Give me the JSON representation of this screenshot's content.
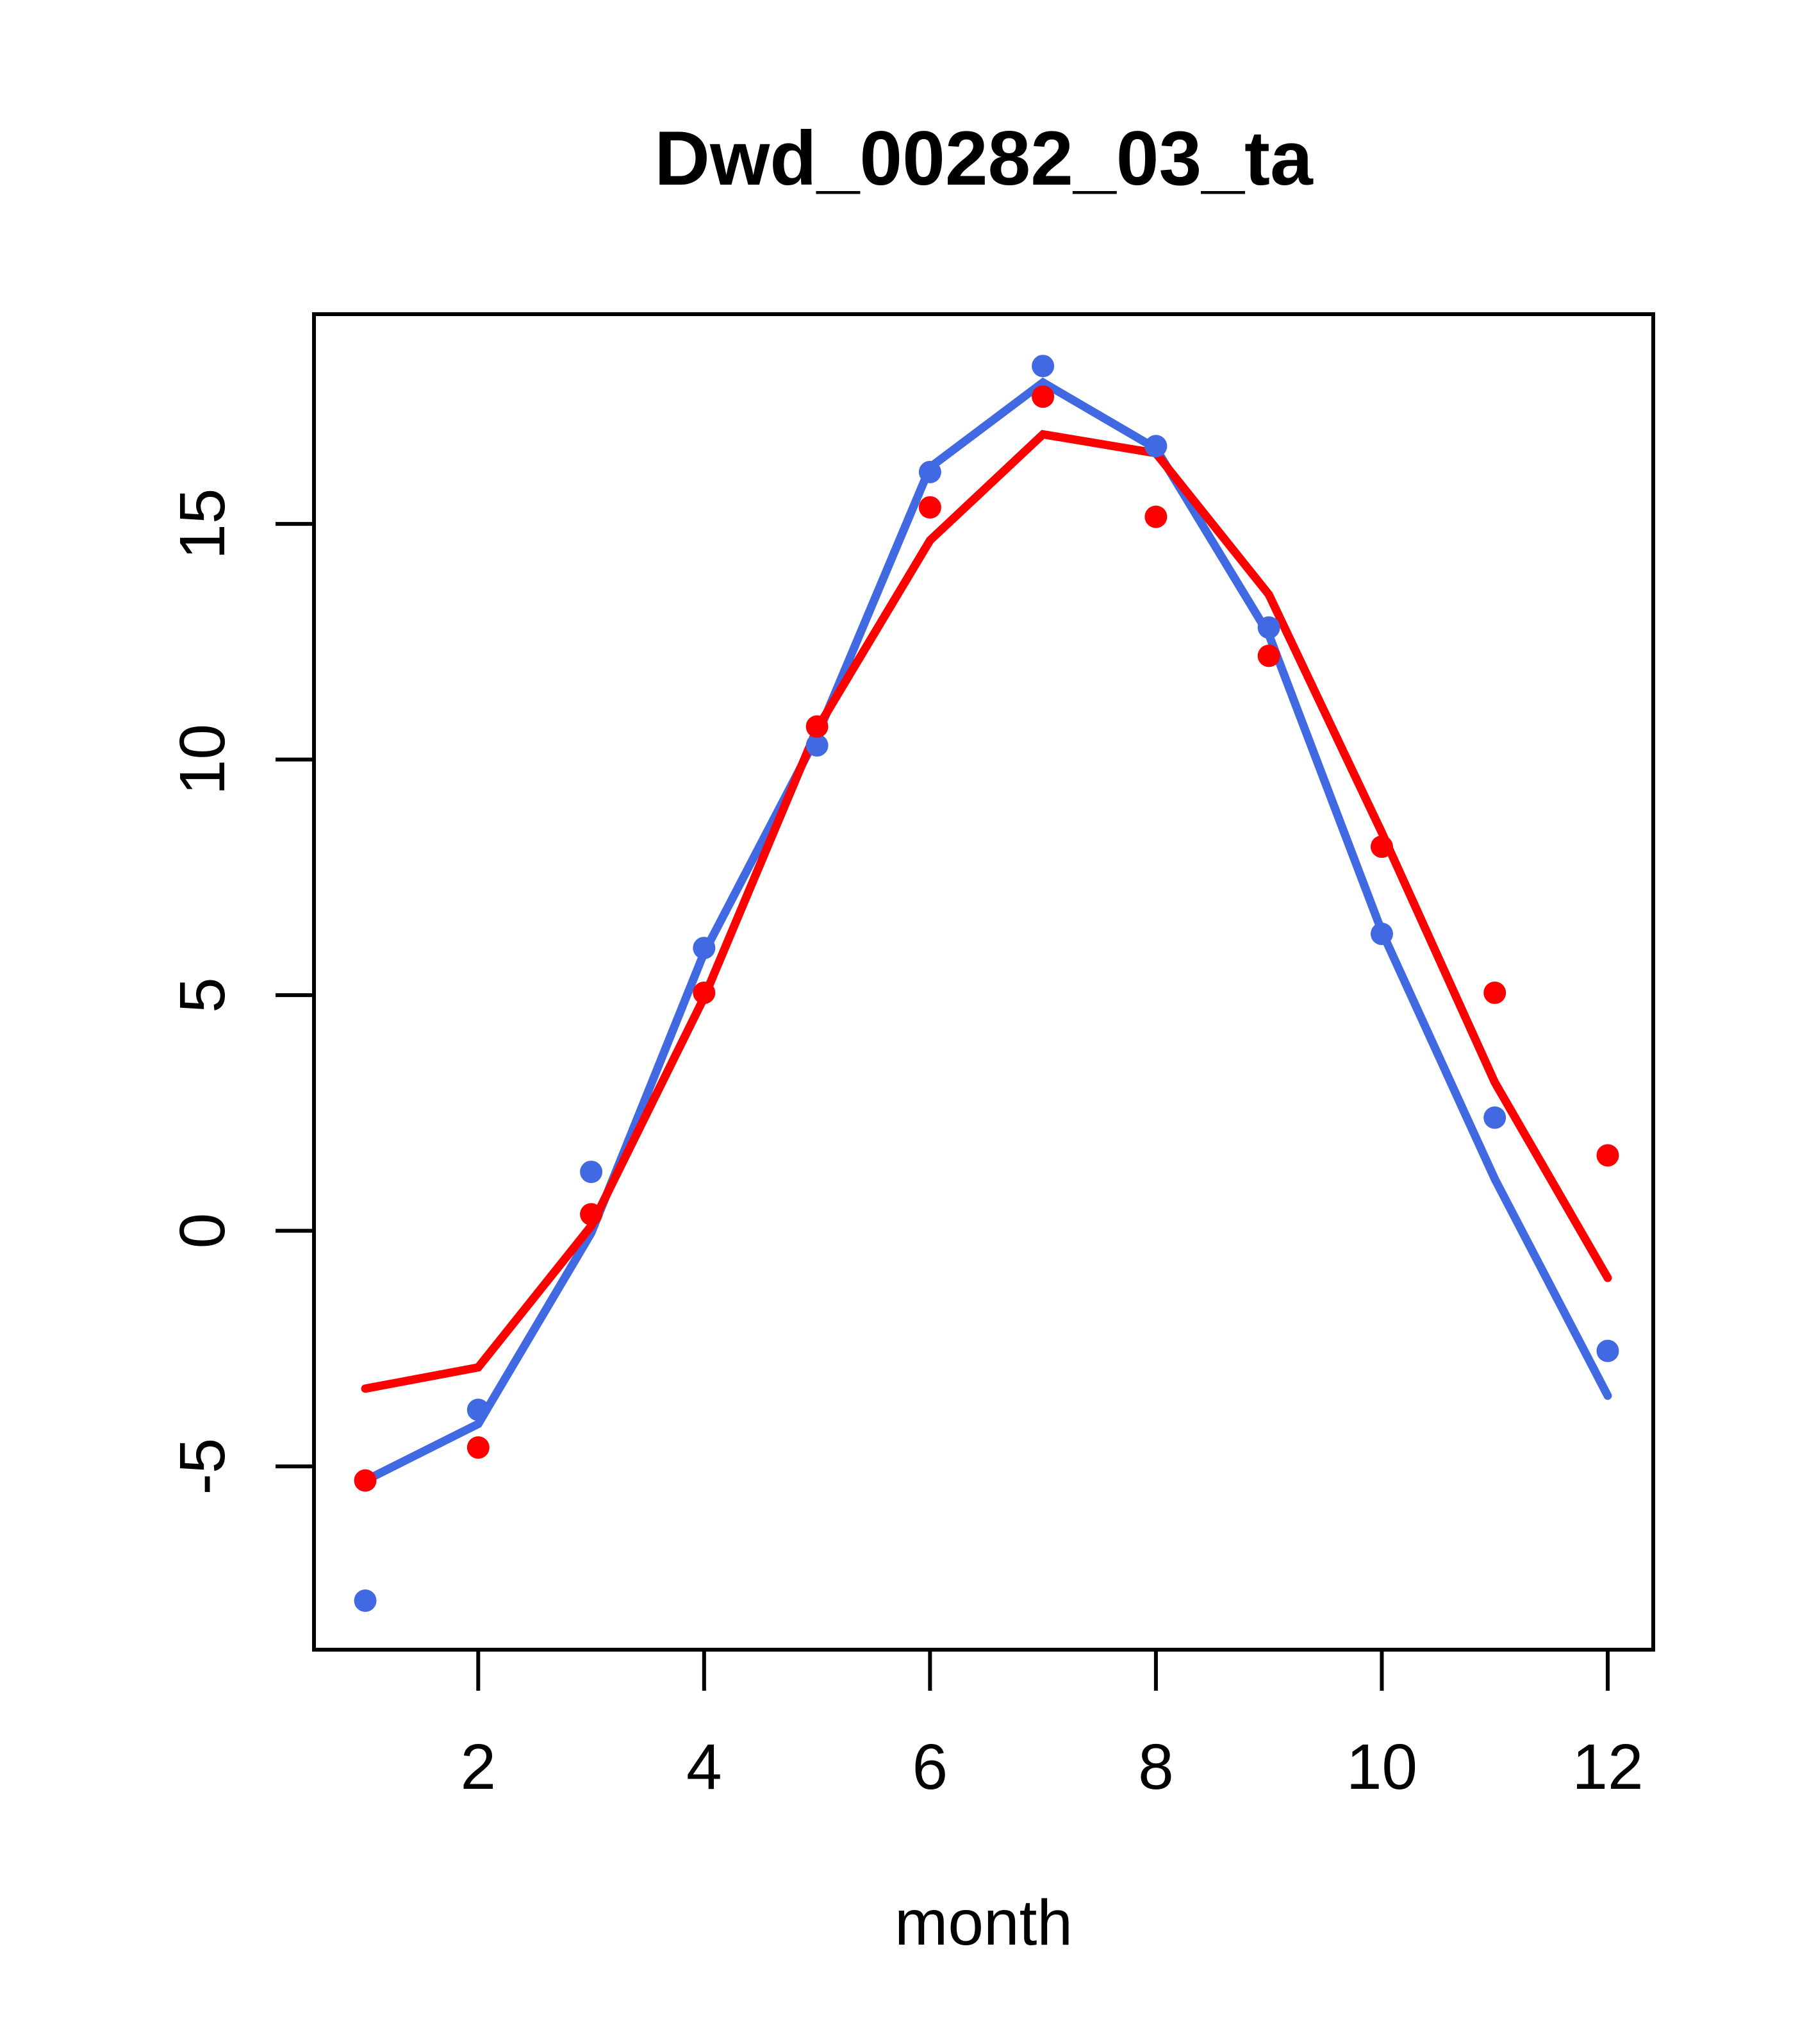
{
  "chart_data": {
    "type": "line",
    "title": "Dwd_00282_03_ta",
    "xlabel": "month",
    "ylabel": "",
    "categories": [
      1,
      2,
      3,
      4,
      5,
      6,
      7,
      8,
      9,
      10,
      11,
      12
    ],
    "x_ticks": [
      "2",
      "4",
      "6",
      "8",
      "10",
      "12"
    ],
    "x_tick_values": [
      2,
      4,
      6,
      8,
      10,
      12
    ],
    "y_ticks": [
      "-5",
      "0",
      "5",
      "10",
      "15"
    ],
    "y_tick_values": [
      -5,
      0,
      5,
      10,
      15
    ],
    "xlim": [
      0.546,
      12.403
    ],
    "ylim": [
      -8.89,
      19.45
    ],
    "grid": false,
    "legend": null,
    "colors": {
      "blue": "#4169E1",
      "red": "#FF0000",
      "axis": "#000000"
    },
    "series": [
      {
        "name": "blue-line",
        "style": "line",
        "color": "#4169E1",
        "values": [
          -5.3,
          -4.1,
          -0.05,
          5.9,
          10.5,
          16.2,
          18.0,
          16.6,
          12.65,
          6.35,
          1.1,
          -3.5
        ]
      },
      {
        "name": "red-line",
        "style": "line",
        "color": "#FF0000",
        "values": [
          -3.35,
          -2.9,
          0.1,
          4.95,
          10.65,
          14.65,
          16.9,
          16.5,
          13.5,
          8.45,
          3.15,
          -1.0
        ]
      },
      {
        "name": "blue-points",
        "style": "points",
        "color": "#4169E1",
        "values": [
          -7.85,
          -3.8,
          1.25,
          6.0,
          10.3,
          16.1,
          18.35,
          16.65,
          12.8,
          6.3,
          2.4,
          -2.55
        ]
      },
      {
        "name": "red-points",
        "style": "points",
        "color": "#FF0000",
        "values": [
          -5.3,
          -4.6,
          0.35,
          5.05,
          10.7,
          15.35,
          17.7,
          15.15,
          12.2,
          8.15,
          5.05,
          1.6
        ]
      }
    ]
  }
}
